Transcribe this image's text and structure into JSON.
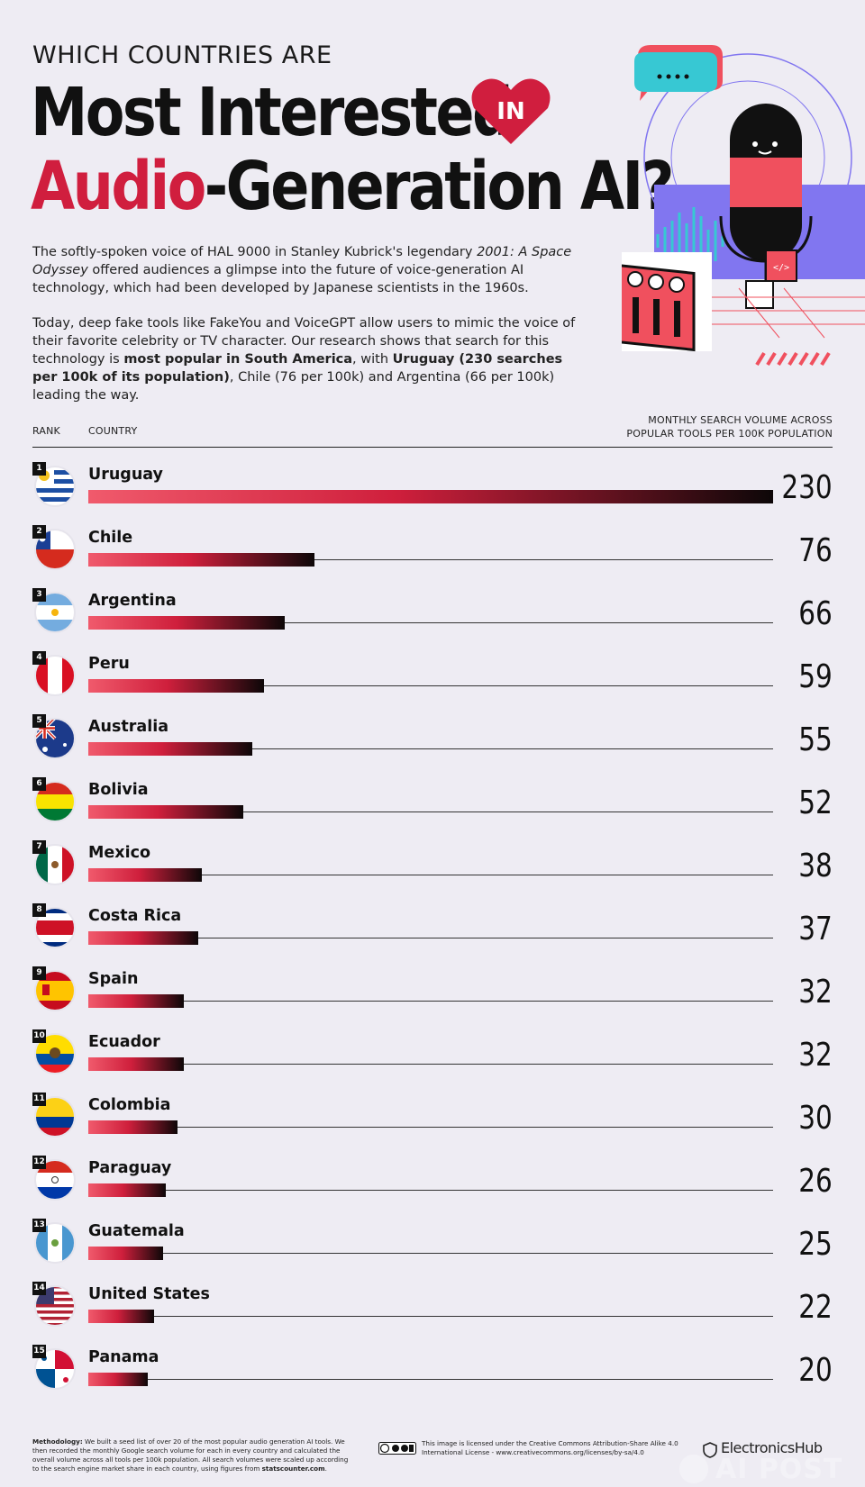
{
  "header": {
    "kicker": "WHICH COUNTRIES ARE",
    "title_line1": "Most Interested",
    "in_badge": "IN",
    "title_line2_accent": "Audio",
    "title_line2_rest": "-Generation AI?"
  },
  "intro": {
    "p1_a": "The softly-spoken voice of HAL 9000 in Stanley Kubrick's legendary ",
    "p1_em": "2001: A Space Odyssey",
    "p1_b": " offered audiences a glimpse into the future of voice-generation AI technology, which had been developed by Japanese scientists in the 1960s.",
    "p2_a": "Today, deep fake tools like FakeYou and VoiceGPT allow users to mimic the voice of their favorite celebrity or TV character. Our research shows that search for this technology is ",
    "p2_b1": "most popular in South America",
    "p2_c": ", with ",
    "p2_b2": "Uruguay (230 searches per 100k of its population)",
    "p2_d": ", Chile (76 per 100k) and Argentina (66 per 100k) leading the way."
  },
  "table_header": {
    "rank": "RANK",
    "country": "COUNTRY",
    "metric_line1": "MONTHLY SEARCH VOLUME ACROSS",
    "metric_line2": "POPULAR TOOLS PER 100K POPULATION"
  },
  "chart_data": {
    "type": "bar",
    "orientation": "horizontal",
    "categories": [
      "Uruguay",
      "Chile",
      "Argentina",
      "Peru",
      "Australia",
      "Bolivia",
      "Mexico",
      "Costa Rica",
      "Spain",
      "Ecuador",
      "Colombia",
      "Paraguay",
      "Guatemala",
      "United States",
      "Panama"
    ],
    "ranks": [
      1,
      2,
      3,
      4,
      5,
      6,
      7,
      8,
      9,
      10,
      11,
      12,
      13,
      14,
      15
    ],
    "values": [
      230,
      76,
      66,
      59,
      55,
      52,
      38,
      37,
      32,
      32,
      30,
      26,
      25,
      22,
      20
    ],
    "xlim": [
      0,
      230
    ],
    "flags": [
      "uruguay-flag",
      "chile-flag",
      "argentina-flag",
      "peru-flag",
      "australia-flag",
      "bolivia-flag",
      "mexico-flag",
      "costa-rica-flag",
      "spain-flag",
      "ecuador-flag",
      "colombia-flag",
      "paraguay-flag",
      "guatemala-flag",
      "united-states-flag",
      "panama-flag"
    ],
    "bar_gradient": [
      "#f05a6c",
      "#cf1f3c",
      "#0d0708"
    ]
  },
  "footer": {
    "methodology_label": "Methodology:",
    "methodology_text": " We built a seed list of over 20 of the most popular audio generation AI tools. We then recorded the monthly Google search volume for each in every country and calculated the overall volume across all tools per 100k population. All search volumes were scaled up according to the search engine market share in each country, using figures from ",
    "methodology_source": "statscounter.com",
    "methodology_end": ".",
    "license_text": "This image is licensed under the Creative Commons Attribution-Share Alike 4.0 International License - www.creativecommons.org/licenses/by-sa/4.0",
    "license_icon": "cc-by-sa-icon",
    "brand": "ElectronicsHub",
    "watermark": "AI POST"
  },
  "colors": {
    "background": "#eeecf3",
    "accent": "#d01e3e",
    "cyan": "#37c8d3",
    "purple": "#8176f0",
    "dark": "#111111"
  }
}
